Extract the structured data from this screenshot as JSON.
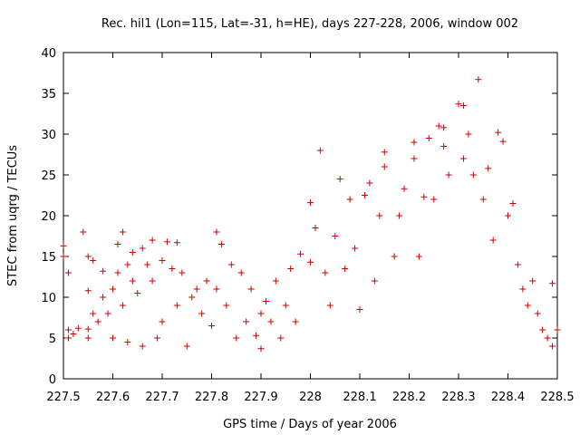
{
  "chart_data": {
    "type": "scatter",
    "title": "Rec. hil1 (Lon=115, Lat=-31, h=HE), days 227-228, 2006, window 002",
    "xlabel": "GPS time / Days of year 2006",
    "ylabel": "STEC from uqrg / TECUs",
    "xlim": [
      227.5,
      228.5
    ],
    "ylim": [
      0,
      40
    ],
    "xticks": [
      "227.5",
      "227.6",
      "227.7",
      "227.8",
      "227.9",
      "228",
      "228.1",
      "228.2",
      "228.3",
      "228.4",
      "228.5"
    ],
    "yticks": [
      "0",
      "5",
      "10",
      "15",
      "20",
      "25",
      "30",
      "35",
      "40"
    ],
    "marker": "+",
    "marker_color": "#cc0000",
    "series": [
      {
        "name": "STEC",
        "points": [
          [
            227.5,
            16.3
          ],
          [
            227.5,
            15
          ],
          [
            227.51,
            13
          ],
          [
            227.51,
            6
          ],
          [
            227.51,
            5
          ],
          [
            227.52,
            5.5
          ],
          [
            227.53,
            6.2
          ],
          [
            227.54,
            18
          ],
          [
            227.55,
            15
          ],
          [
            227.55,
            10.8
          ],
          [
            227.55,
            6.1
          ],
          [
            227.55,
            5
          ],
          [
            227.56,
            14.5
          ],
          [
            227.56,
            8
          ],
          [
            227.57,
            7
          ],
          [
            227.58,
            13.2
          ],
          [
            227.58,
            10
          ],
          [
            227.59,
            8
          ],
          [
            227.6,
            11
          ],
          [
            227.6,
            5
          ],
          [
            227.61,
            16.5
          ],
          [
            227.61,
            13
          ],
          [
            227.62,
            18
          ],
          [
            227.62,
            9
          ],
          [
            227.63,
            14
          ],
          [
            227.63,
            4.5
          ],
          [
            227.64,
            15.5
          ],
          [
            227.64,
            12
          ],
          [
            227.65,
            10.5
          ],
          [
            227.66,
            16
          ],
          [
            227.66,
            4
          ],
          [
            227.67,
            14
          ],
          [
            227.68,
            17
          ],
          [
            227.68,
            12
          ],
          [
            227.69,
            5
          ],
          [
            227.7,
            14.5
          ],
          [
            227.7,
            7
          ],
          [
            227.71,
            16.8
          ],
          [
            227.72,
            13.5
          ],
          [
            227.73,
            16.7
          ],
          [
            227.73,
            9
          ],
          [
            227.74,
            13
          ],
          [
            227.75,
            4
          ],
          [
            227.76,
            10
          ],
          [
            227.77,
            11
          ],
          [
            227.78,
            8
          ],
          [
            227.79,
            12
          ],
          [
            227.8,
            6.5
          ],
          [
            227.81,
            18
          ],
          [
            227.81,
            11
          ],
          [
            227.82,
            16.5
          ],
          [
            227.83,
            9
          ],
          [
            227.84,
            14
          ],
          [
            227.85,
            5
          ],
          [
            227.86,
            13
          ],
          [
            227.87,
            7
          ],
          [
            227.88,
            11
          ],
          [
            227.89,
            5.3
          ],
          [
            227.9,
            8
          ],
          [
            227.9,
            3.7
          ],
          [
            227.91,
            9.5
          ],
          [
            227.92,
            7
          ],
          [
            227.93,
            12
          ],
          [
            227.94,
            5
          ],
          [
            227.95,
            9
          ],
          [
            227.96,
            13.5
          ],
          [
            227.97,
            7
          ],
          [
            227.98,
            15.3
          ],
          [
            228.0,
            21.6
          ],
          [
            228.0,
            14.3
          ],
          [
            228.01,
            18.5
          ],
          [
            228.02,
            28
          ],
          [
            228.03,
            13
          ],
          [
            228.04,
            9
          ],
          [
            228.05,
            17.5
          ],
          [
            228.06,
            24.5
          ],
          [
            228.07,
            13.5
          ],
          [
            228.08,
            22
          ],
          [
            228.09,
            16
          ],
          [
            228.1,
            8.5
          ],
          [
            228.11,
            22.5
          ],
          [
            228.12,
            24
          ],
          [
            228.13,
            12
          ],
          [
            228.14,
            20
          ],
          [
            228.15,
            27.8
          ],
          [
            228.15,
            26
          ],
          [
            228.17,
            15
          ],
          [
            228.18,
            20
          ],
          [
            228.19,
            23.3
          ],
          [
            228.21,
            29
          ],
          [
            228.21,
            27
          ],
          [
            228.22,
            15
          ],
          [
            228.23,
            22.3
          ],
          [
            228.24,
            29.5
          ],
          [
            228.25,
            22
          ],
          [
            228.26,
            31
          ],
          [
            228.27,
            30.8
          ],
          [
            228.27,
            28.5
          ],
          [
            228.28,
            25
          ],
          [
            228.3,
            33.7
          ],
          [
            228.31,
            33.5
          ],
          [
            228.31,
            27
          ],
          [
            228.32,
            30
          ],
          [
            228.33,
            25
          ],
          [
            228.34,
            36.7
          ],
          [
            228.35,
            22
          ],
          [
            228.36,
            25.8
          ],
          [
            228.37,
            17
          ],
          [
            228.38,
            30.2
          ],
          [
            228.39,
            29.1
          ],
          [
            228.4,
            20
          ],
          [
            228.41,
            21.5
          ],
          [
            228.42,
            14
          ],
          [
            228.43,
            11
          ],
          [
            228.44,
            9
          ],
          [
            228.45,
            12
          ],
          [
            228.46,
            8
          ],
          [
            228.47,
            6
          ],
          [
            228.48,
            5
          ],
          [
            228.49,
            4
          ],
          [
            228.49,
            11.7
          ],
          [
            228.5,
            6
          ]
        ]
      }
    ]
  }
}
